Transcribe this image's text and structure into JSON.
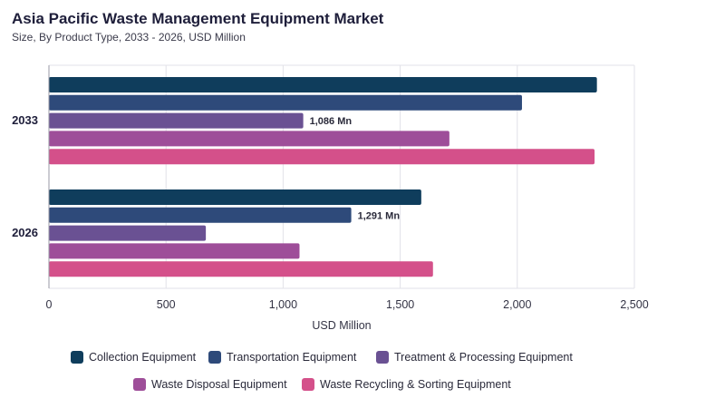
{
  "title": "Asia Pacific Waste Management Equipment Market",
  "subtitle": "Size, By Product Type, 2033 - 2026, USD Million",
  "chart_data": {
    "type": "bar",
    "orientation": "horizontal",
    "categories": [
      "2033",
      "2026"
    ],
    "series": [
      {
        "name": "Collection Equipment",
        "color": "#0f3d5c",
        "values": [
          2340,
          1590
        ]
      },
      {
        "name": "Transportation Equipment",
        "color": "#2e4a7a",
        "values": [
          2020,
          1291
        ]
      },
      {
        "name": "Treatment & Processing Equipment",
        "color": "#6a5193",
        "values": [
          1086,
          670
        ]
      },
      {
        "name": "Waste Disposal Equipment",
        "color": "#9e4e99",
        "values": [
          1710,
          1070
        ]
      },
      {
        "name": "Waste Recycling & Sorting Equipment",
        "color": "#d4508a",
        "values": [
          2330,
          1640
        ]
      }
    ],
    "data_labels": [
      {
        "category": "2033",
        "series": "Treatment & Processing Equipment",
        "text": "1,086 Mn"
      },
      {
        "category": "2026",
        "series": "Transportation Equipment",
        "text": "1,291 Mn"
      }
    ],
    "xlabel": "USD Million",
    "xlim": [
      0,
      2500
    ],
    "xticks": [
      0,
      500,
      1000,
      1500,
      2000,
      2500
    ],
    "xtick_labels": [
      "0",
      "500",
      "1,000",
      "1,500",
      "2,000",
      "2,500"
    ],
    "grid": true,
    "legend_position": "bottom"
  }
}
